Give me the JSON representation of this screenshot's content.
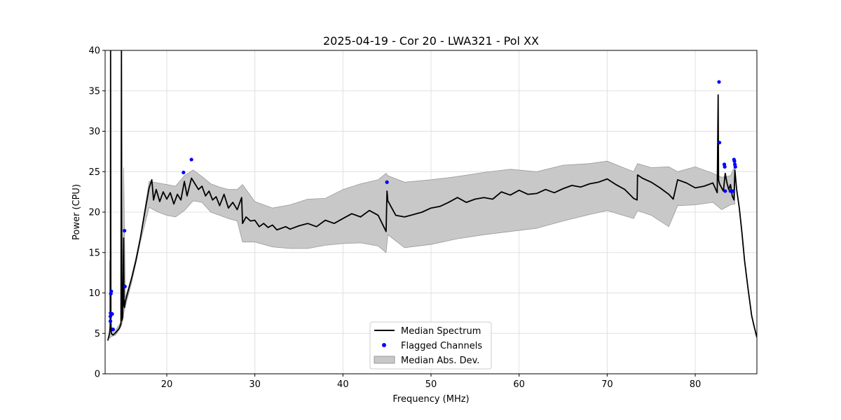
{
  "chart_data": {
    "type": "line",
    "title": "2025-04-19 - Cor 20 - LWA321 - Pol XX",
    "xlabel": "Frequency (MHz)",
    "ylabel": "Power (CPU)",
    "xlim": [
      13,
      87
    ],
    "ylim": [
      0,
      40
    ],
    "xticks": [
      20,
      30,
      40,
      50,
      60,
      70,
      80
    ],
    "yticks": [
      0,
      5,
      10,
      15,
      20,
      25,
      30,
      35,
      40
    ],
    "grid": true,
    "legend_position": "lower-center",
    "colors": {
      "median": "#000000",
      "flagged": "#0000ff",
      "mad_fill": "#c8c8c8",
      "mad_edge": "#9a9a9a"
    },
    "series": [
      {
        "name": "Median Spectrum",
        "kind": "line",
        "x": [
          13.3,
          13.5,
          13.6,
          13.62,
          13.65,
          13.7,
          13.9,
          14.2,
          14.6,
          14.8,
          14.85,
          14.9,
          14.95,
          15.0,
          15.1,
          15.15,
          15.2,
          15.25,
          15.3,
          15.6,
          16.0,
          16.5,
          17.0,
          17.5,
          18.0,
          18.3,
          18.5,
          18.8,
          19.2,
          19.6,
          20.0,
          20.4,
          20.8,
          21.2,
          21.6,
          22.0,
          22.3,
          22.8,
          23.2,
          23.6,
          24.0,
          24.4,
          24.8,
          25.2,
          25.6,
          26.0,
          26.5,
          27.0,
          27.5,
          28.0,
          28.5,
          28.6,
          29.0,
          29.5,
          30.0,
          30.5,
          31.0,
          31.5,
          32.0,
          32.5,
          33.0,
          33.5,
          34.0,
          35.0,
          36.0,
          37.0,
          38.0,
          39.0,
          40.0,
          41.0,
          42.0,
          43.0,
          44.0,
          44.9,
          45.0,
          45.1,
          45.5,
          46.0,
          47.0,
          48.0,
          49.0,
          50.0,
          51.0,
          52.0,
          53.0,
          54.0,
          55.0,
          56.0,
          57.0,
          58.0,
          59.0,
          60.0,
          61.0,
          62.0,
          63.0,
          64.0,
          65.0,
          66.0,
          67.0,
          68.0,
          69.0,
          70.0,
          71.0,
          72.0,
          73.0,
          73.4,
          73.45,
          74.0,
          75.0,
          76.0,
          77.0,
          77.5,
          78.0,
          79.0,
          80.0,
          81.0,
          82.0,
          82.5,
          82.6,
          82.65,
          82.7,
          82.8,
          83.0,
          83.2,
          83.4,
          83.6,
          83.8,
          84.0,
          84.2,
          84.4,
          84.5,
          84.7,
          85.0,
          85.3,
          85.6,
          86.0,
          86.4,
          86.7,
          87.0
        ],
        "y": [
          4.1,
          5.0,
          6.0,
          40,
          6.5,
          5.0,
          4.8,
          5.1,
          5.6,
          6.2,
          40,
          6.6,
          6.8,
          7.0,
          16.8,
          8.5,
          8.2,
          8.6,
          9.0,
          10.2,
          11.8,
          14.0,
          16.8,
          20.0,
          23.0,
          24.0,
          21.5,
          22.8,
          21.3,
          22.5,
          21.6,
          22.4,
          21.0,
          22.2,
          21.5,
          23.8,
          22.0,
          24.2,
          23.5,
          22.8,
          23.2,
          22.0,
          22.6,
          21.5,
          21.9,
          20.8,
          22.2,
          20.5,
          21.2,
          20.3,
          21.8,
          18.6,
          19.4,
          18.9,
          19.0,
          18.2,
          18.6,
          18.1,
          18.4,
          17.8,
          18.0,
          18.2,
          17.9,
          18.3,
          18.6,
          18.2,
          19.0,
          18.6,
          19.2,
          19.8,
          19.4,
          20.2,
          19.6,
          17.6,
          22.6,
          21.4,
          20.6,
          19.6,
          19.4,
          19.7,
          20.0,
          20.5,
          20.7,
          21.2,
          21.8,
          21.2,
          21.6,
          21.8,
          21.6,
          22.5,
          22.1,
          22.7,
          22.2,
          22.3,
          22.8,
          22.4,
          22.9,
          23.3,
          23.1,
          23.5,
          23.7,
          24.1,
          23.4,
          22.8,
          21.7,
          21.5,
          24.6,
          24.2,
          23.7,
          23.0,
          22.2,
          21.6,
          24.0,
          23.6,
          23.0,
          23.2,
          23.6,
          22.4,
          34.5,
          24.0,
          23.7,
          23.4,
          23.0,
          22.6,
          24.8,
          23.6,
          22.8,
          23.4,
          22.0,
          21.5,
          25.2,
          22.8,
          20.5,
          17.5,
          14.0,
          10.5,
          7.2,
          5.8,
          4.5
        ]
      },
      {
        "name": "Median Abs. Dev.",
        "kind": "band",
        "x": [
          13.5,
          13.7,
          14.2,
          14.8,
          15.0,
          15.1,
          15.3,
          16.0,
          17.0,
          18.0,
          19.0,
          20.0,
          21.0,
          22.0,
          23.0,
          24.0,
          25.0,
          26.0,
          27.0,
          28.0,
          28.6,
          30.0,
          32.0,
          34.0,
          36.0,
          38.0,
          40.0,
          42.0,
          44.0,
          44.9,
          45.1,
          47.0,
          50.0,
          53.0,
          56.0,
          59.0,
          62.0,
          65.0,
          68.0,
          70.0,
          73.0,
          73.45,
          75.0,
          77.0,
          78.0,
          80.0,
          82.0,
          83.0,
          84.0,
          84.5
        ],
        "upper": [
          14.0,
          5.3,
          5.4,
          6.4,
          7.4,
          25.5,
          9.4,
          12.0,
          16.9,
          23.8,
          23.6,
          23.4,
          23.2,
          24.5,
          25.2,
          24.4,
          23.5,
          23.1,
          22.8,
          22.8,
          23.4,
          21.3,
          20.5,
          20.9,
          21.6,
          21.7,
          22.8,
          23.5,
          24.0,
          24.8,
          24.5,
          23.7,
          24.0,
          24.4,
          24.9,
          25.3,
          25.0,
          25.8,
          26.0,
          26.3,
          25.0,
          26.0,
          25.5,
          25.6,
          25.0,
          25.6,
          24.8,
          24.3,
          24.5,
          25.7
        ],
        "lower": [
          4.4,
          4.6,
          4.8,
          5.8,
          6.6,
          7.4,
          8.4,
          11.2,
          16.3,
          20.6,
          20.0,
          19.6,
          19.4,
          20.2,
          21.4,
          21.2,
          20.0,
          19.6,
          19.2,
          18.9,
          16.3,
          16.3,
          15.7,
          15.5,
          15.5,
          15.9,
          16.1,
          16.2,
          15.8,
          15.0,
          17.2,
          15.6,
          16.0,
          16.7,
          17.2,
          17.6,
          18.0,
          18.9,
          19.7,
          20.2,
          19.2,
          20.2,
          19.6,
          18.2,
          20.8,
          20.9,
          21.2,
          20.3,
          20.9,
          21.0
        ]
      },
      {
        "name": "Flagged Channels",
        "kind": "scatter",
        "x": [
          13.6,
          13.6,
          13.62,
          13.65,
          13.7,
          13.7,
          13.8,
          13.9,
          15.2,
          15.25,
          21.9,
          22.8,
          45.0,
          82.7,
          82.75,
          83.3,
          83.35,
          83.4,
          84.0,
          84.3,
          84.4,
          84.45,
          84.5,
          84.55
        ],
        "y": [
          6.5,
          7.1,
          7.5,
          9.9,
          10.2,
          7.4,
          7.4,
          5.5,
          17.7,
          10.8,
          24.9,
          26.5,
          23.7,
          36.1,
          28.6,
          25.9,
          25.6,
          22.6,
          22.6,
          22.6,
          26.5,
          26.3,
          25.9,
          25.6
        ]
      }
    ]
  }
}
